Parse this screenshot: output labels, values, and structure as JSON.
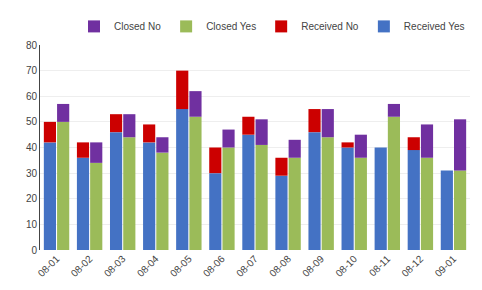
{
  "chart_data": {
    "type": "bar",
    "categories": [
      "08-01",
      "08-02",
      "08-03",
      "08-04",
      "08-05",
      "08-06",
      "08-07",
      "08-08",
      "08-09",
      "08-10",
      "08-11",
      "08-12",
      "09-01"
    ],
    "series": [
      {
        "name": "Closed No",
        "color": "#7030A0",
        "values": [
          7,
          8,
          9,
          6,
          10,
          7,
          10,
          7,
          11,
          9,
          5,
          13,
          20
        ]
      },
      {
        "name": "Closed Yes",
        "color": "#9BBB59",
        "values": [
          50,
          34,
          44,
          38,
          52,
          40,
          41,
          36,
          44,
          36,
          52,
          36,
          31
        ]
      },
      {
        "name": "Received No",
        "color": "#CC0000",
        "values": [
          8,
          6,
          7,
          7,
          15,
          10,
          7,
          7,
          9,
          2,
          0,
          5,
          0
        ]
      },
      {
        "name": "Received Yes",
        "color": "#4472C4",
        "values": [
          42,
          36,
          46,
          42,
          55,
          30,
          45,
          29,
          46,
          40,
          40,
          39,
          31
        ]
      }
    ],
    "stacked": [
      [
        "Received Yes",
        "Received No"
      ],
      [
        "Closed Yes",
        "Closed No"
      ]
    ],
    "ylim": [
      0,
      80
    ],
    "yticks": [
      0,
      10,
      20,
      30,
      40,
      50,
      60,
      70,
      80
    ],
    "grid": true,
    "legend": "upper right"
  }
}
